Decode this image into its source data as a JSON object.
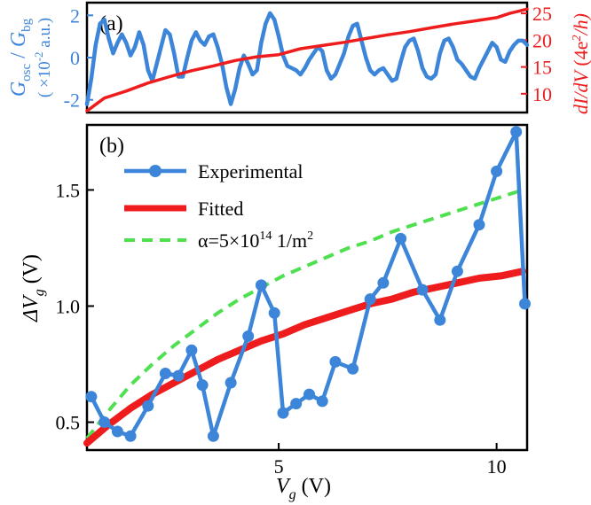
{
  "chart_data": [
    {
      "panel": "(a)",
      "type": "line",
      "x_range": [
        0.6,
        10.7
      ],
      "left_axis": {
        "label_parts": [
          "G",
          "osc",
          " / ",
          "G",
          "bg"
        ],
        "units_parts": [
          "( ×10",
          "-2",
          " a.u.)"
        ],
        "ylim": [
          -2.6,
          2.6
        ],
        "ticks": [
          -2,
          0,
          2
        ],
        "tick_labels": [
          "-2",
          "0",
          "2"
        ]
      },
      "right_axis": {
        "label_parts": [
          "dI/dV",
          " (4e",
          "2",
          "/h)"
        ],
        "ylim": [
          6.5,
          27.0
        ],
        "ticks": [
          10,
          15,
          20,
          25
        ],
        "tick_labels": [
          "10",
          "15",
          "20",
          "25"
        ]
      },
      "series": [
        {
          "name": "G_osc/G_bg",
          "axis": "left",
          "color": "#3d85d9",
          "x": [
            0.6,
            0.7,
            0.8,
            0.9,
            1.0,
            1.1,
            1.2,
            1.3,
            1.4,
            1.5,
            1.6,
            1.7,
            1.8,
            1.9,
            2.0,
            2.1,
            2.2,
            2.3,
            2.4,
            2.5,
            2.6,
            2.7,
            2.8,
            2.9,
            3.0,
            3.1,
            3.2,
            3.3,
            3.4,
            3.5,
            3.6,
            3.7,
            3.8,
            3.9,
            4.0,
            4.1,
            4.2,
            4.3,
            4.4,
            4.5,
            4.6,
            4.7,
            4.8,
            4.9,
            5.0,
            5.1,
            5.2,
            5.3,
            5.4,
            5.5,
            5.6,
            5.7,
            5.8,
            5.9,
            6.0,
            6.1,
            6.2,
            6.3,
            6.4,
            6.5,
            6.6,
            6.7,
            6.8,
            6.9,
            7.0,
            7.1,
            7.2,
            7.3,
            7.4,
            7.5,
            7.6,
            7.7,
            7.8,
            7.9,
            8.0,
            8.1,
            8.2,
            8.3,
            8.4,
            8.5,
            8.6,
            8.7,
            8.8,
            8.9,
            9.0,
            9.1,
            9.2,
            9.3,
            9.4,
            9.5,
            9.6,
            9.7,
            9.8,
            9.9,
            10.0,
            10.1,
            10.2,
            10.3,
            10.4,
            10.5,
            10.6,
            10.7
          ],
          "y": [
            -2.2,
            -1.0,
            0.6,
            1.6,
            1.8,
            0.9,
            0.2,
            0.7,
            1.1,
            0.7,
            0.1,
            0.5,
            1.2,
            0.6,
            -0.6,
            -1.1,
            -0.3,
            0.5,
            1.3,
            1.1,
            0.2,
            -0.9,
            -0.9,
            0.0,
            0.8,
            1.2,
            0.8,
            0.6,
            1.0,
            1.1,
            0.5,
            -0.3,
            -1.4,
            -2.2,
            -1.5,
            -0.5,
            0.1,
            -0.3,
            -0.8,
            -0.6,
            0.7,
            1.6,
            2.1,
            1.8,
            1.0,
            0.1,
            -0.4,
            -0.5,
            -0.6,
            -0.8,
            -0.5,
            -0.1,
            0.2,
            0.5,
            0.3,
            -0.6,
            -1.0,
            -0.8,
            -0.3,
            0.2,
            1.0,
            1.5,
            1.6,
            0.8,
            0.0,
            -0.6,
            -0.8,
            -0.6,
            -0.5,
            -0.8,
            -1.1,
            -1.0,
            -0.2,
            0.5,
            0.8,
            0.9,
            0.3,
            -0.5,
            -0.9,
            -1.0,
            -0.8,
            0.2,
            0.8,
            0.9,
            0.5,
            -0.1,
            -0.3,
            -0.6,
            -0.9,
            -1.0,
            -0.5,
            -0.1,
            0.3,
            0.7,
            0.5,
            -0.1,
            -0.2,
            0.3,
            0.6,
            0.8,
            0.8,
            0.6
          ]
        },
        {
          "name": "dI/dV",
          "axis": "right",
          "color": "#ee1c1c",
          "x": [
            0.6,
            1.0,
            1.5,
            2.0,
            2.5,
            3.0,
            3.5,
            4.0,
            4.5,
            5.0,
            5.5,
            6.0,
            6.5,
            7.0,
            7.5,
            8.0,
            8.5,
            9.0,
            9.5,
            10.0,
            10.3,
            10.7
          ],
          "y": [
            6.8,
            9.2,
            10.5,
            12.0,
            13.2,
            14.3,
            15.2,
            16.2,
            16.9,
            17.3,
            18.4,
            19.0,
            19.6,
            20.3,
            21.0,
            21.6,
            22.3,
            23.0,
            23.6,
            24.2,
            25.0,
            25.8
          ]
        }
      ]
    },
    {
      "panel": "(b)",
      "type": "line",
      "xlabel_parts": [
        "V",
        "g",
        " (V)"
      ],
      "ylabel_parts": [
        "ΔV",
        "g",
        " (V)"
      ],
      "xlim": [
        0.6,
        10.7
      ],
      "ylim": [
        0.38,
        1.78
      ],
      "xticks": [
        5,
        10
      ],
      "xtick_labels": [
        "5",
        "10"
      ],
      "yticks": [
        0.5,
        1.0,
        1.5
      ],
      "ytick_labels": [
        "0.5",
        "1.0",
        "1.5"
      ],
      "legend_position": "top-left",
      "series": [
        {
          "name": "Experimental",
          "style": "line-markers",
          "color": "#3d85d9",
          "x": [
            0.7,
            1.0,
            1.3,
            1.6,
            2.0,
            2.4,
            2.7,
            3.0,
            3.25,
            3.5,
            3.9,
            4.3,
            4.6,
            4.9,
            5.1,
            5.4,
            5.7,
            6.0,
            6.3,
            6.7,
            7.1,
            7.4,
            7.8,
            8.3,
            8.7,
            9.1,
            9.6,
            10.0,
            10.45,
            10.65
          ],
          "y": [
            0.61,
            0.5,
            0.46,
            0.44,
            0.57,
            0.71,
            0.7,
            0.81,
            0.66,
            0.44,
            0.67,
            0.87,
            1.09,
            0.97,
            0.54,
            0.58,
            0.62,
            0.59,
            0.76,
            0.73,
            1.03,
            1.1,
            1.29,
            1.07,
            0.94,
            1.15,
            1.35,
            1.58,
            1.75,
            1.01
          ]
        },
        {
          "name": "Fitted",
          "style": "thick-line",
          "color": "#ee1c1c",
          "x": [
            0.6,
            1.1,
            1.6,
            2.1,
            2.6,
            3.1,
            3.6,
            4.1,
            4.6,
            5.1,
            5.6,
            6.1,
            6.6,
            7.1,
            7.6,
            8.1,
            8.6,
            9.1,
            9.6,
            10.1,
            10.6
          ],
          "y": [
            0.41,
            0.49,
            0.56,
            0.62,
            0.67,
            0.72,
            0.77,
            0.81,
            0.85,
            0.88,
            0.92,
            0.95,
            0.98,
            1.01,
            1.03,
            1.06,
            1.08,
            1.1,
            1.12,
            1.13,
            1.15
          ]
        },
        {
          "name": "α=5×10¹⁴ 1/m²",
          "label_parts": [
            "α=5×10",
            "14",
            " 1/m",
            "2"
          ],
          "style": "dashed",
          "color": "#4fe04f",
          "x": [
            0.6,
            1.1,
            1.6,
            2.1,
            2.6,
            3.1,
            3.6,
            4.1,
            4.6,
            5.1,
            5.6,
            6.1,
            6.6,
            7.1,
            7.6,
            8.1,
            8.6,
            9.1,
            9.6,
            10.1,
            10.6
          ],
          "y": [
            0.43,
            0.55,
            0.66,
            0.75,
            0.83,
            0.9,
            0.97,
            1.03,
            1.08,
            1.13,
            1.17,
            1.21,
            1.25,
            1.28,
            1.32,
            1.35,
            1.38,
            1.41,
            1.44,
            1.47,
            1.5
          ]
        }
      ]
    }
  ]
}
